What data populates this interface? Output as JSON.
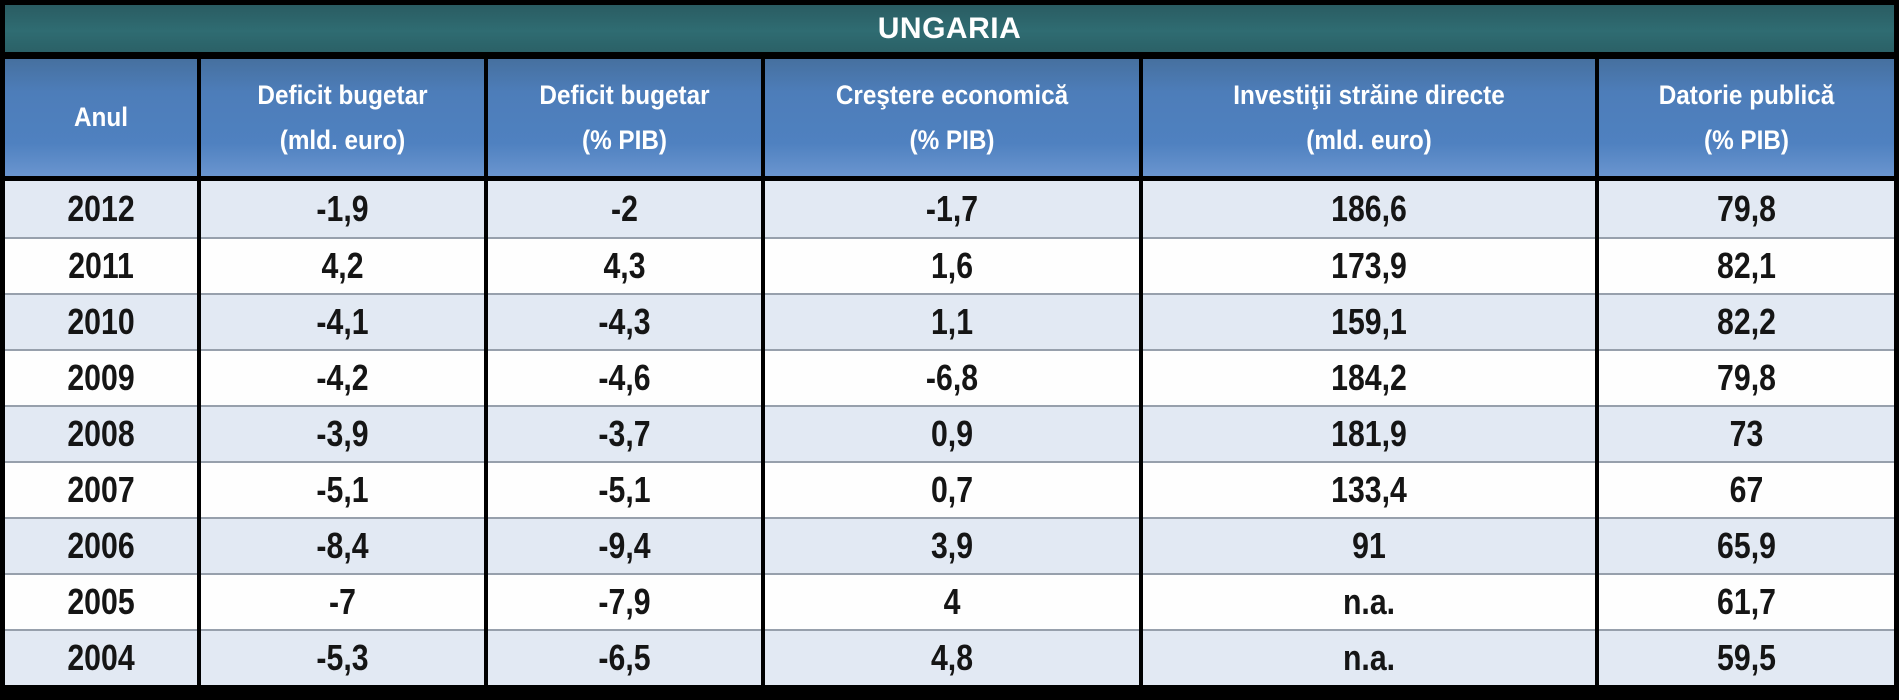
{
  "title": "UNGARIA",
  "chart_data": {
    "type": "table",
    "title": "UNGARIA",
    "columns": [
      {
        "label": "Anul",
        "unit": ""
      },
      {
        "label": "Deficit bugetar",
        "unit": "(mld. euro)"
      },
      {
        "label": "Deficit bugetar",
        "unit": "(% PIB)"
      },
      {
        "label": "Creştere economică",
        "unit": "(% PIB)"
      },
      {
        "label": "Investiţii străine directe",
        "unit": "(mld. euro)"
      },
      {
        "label": "Datorie publică",
        "unit": "(% PIB)"
      }
    ],
    "rows": [
      [
        "2012",
        "-1,9",
        "-2",
        "-1,7",
        "186,6",
        "79,8"
      ],
      [
        "2011",
        "4,2",
        "4,3",
        "1,6",
        "173,9",
        "82,1"
      ],
      [
        "2010",
        "-4,1",
        "-4,3",
        "1,1",
        "159,1",
        "82,2"
      ],
      [
        "2009",
        "-4,2",
        "-4,6",
        "-6,8",
        "184,2",
        "79,8"
      ],
      [
        "2008",
        "-3,9",
        "-3,7",
        "0,9",
        "181,9",
        "73"
      ],
      [
        "2007",
        "-5,1",
        "-5,1",
        "0,7",
        "133,4",
        "67"
      ],
      [
        "2006",
        "-8,4",
        "-9,4",
        "3,9",
        "91",
        "65,9"
      ],
      [
        "2005",
        "-7",
        "-7,9",
        "4",
        "n.a.",
        "61,7"
      ],
      [
        "2004",
        "-5,3",
        "-6,5",
        "4,8",
        "n.a.",
        "59,5"
      ]
    ]
  },
  "colors": {
    "title_bg": "#2E6A70",
    "header_bg": "#4E7EBD",
    "row_alt_bg": "#E2E9F3",
    "row_bg": "#FEFEFE",
    "border": "#000000",
    "row_separator": "#97A0AC",
    "header_text": "#FFFFFF",
    "cell_text": "#151515"
  }
}
